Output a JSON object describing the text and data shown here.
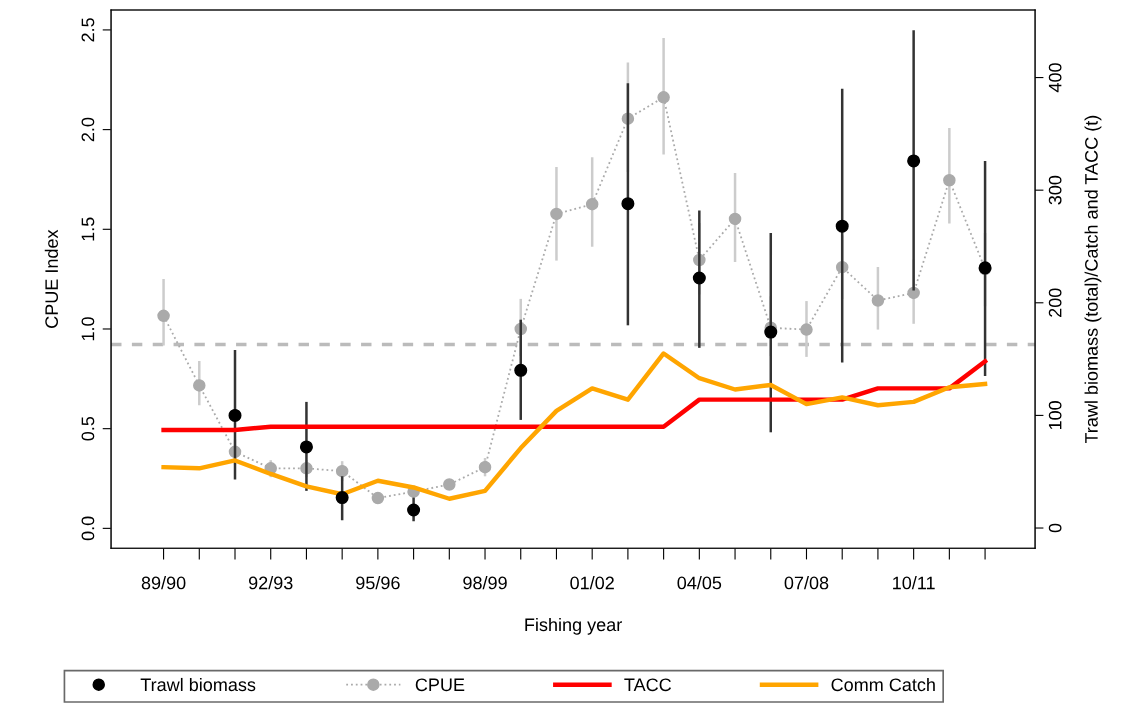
{
  "chart_data": {
    "type": "line",
    "xlabel": "Fishing year",
    "ylabel": "CPUE Index",
    "y2label": "Trawl biomass (total)/Catch and TACC (t)",
    "categories": [
      "89/90",
      null,
      null,
      "92/93",
      null,
      null,
      "95/96",
      null,
      null,
      "98/99",
      null,
      null,
      "01/02",
      null,
      null,
      "04/05",
      null,
      null,
      "07/08",
      null,
      null,
      "10/11",
      null,
      null
    ],
    "ylim": [
      -0.1,
      2.6
    ],
    "yticks": [
      {
        "value": 0,
        "label": "0.0"
      },
      {
        "value": 0.5,
        "label": "0.5"
      },
      {
        "value": 1,
        "label": "1.0"
      },
      {
        "value": 1.5,
        "label": "1.5"
      },
      {
        "value": 2,
        "label": "2.0"
      },
      {
        "value": 2.5,
        "label": "2.5"
      }
    ],
    "y2lim": [
      -18,
      460
    ],
    "y2ticks": [
      0,
      100,
      200,
      300,
      400
    ],
    "series": [
      {
        "name": "Trawl biomass",
        "type": "scatter",
        "axis": "y2",
        "color": "#000000",
        "marker": "circle",
        "values": [
          null,
          null,
          100,
          null,
          72,
          27,
          null,
          16,
          null,
          null,
          140,
          null,
          null,
          288,
          null,
          222,
          null,
          174,
          null,
          268,
          null,
          326,
          null,
          231
        ],
        "errors": [
          null,
          null,
          [
            43,
            158
          ],
          null,
          [
            33,
            112
          ],
          [
            7,
            46
          ],
          null,
          [
            6,
            27
          ],
          null,
          null,
          [
            96,
            185
          ],
          null,
          null,
          [
            180,
            395
          ],
          null,
          [
            160,
            282
          ],
          null,
          [
            85,
            262
          ],
          null,
          [
            147,
            390
          ],
          null,
          [
            211,
            442
          ],
          null,
          [
            135,
            326
          ]
        ]
      },
      {
        "name": "CPUE",
        "axis": "y",
        "color": "#aaaaaa",
        "marker": "circle",
        "line_style": "dotted",
        "values": [
          1.066,
          0.717,
          0.384,
          0.301,
          0.301,
          0.287,
          0.152,
          0.184,
          0.22,
          0.307,
          1.0,
          1.577,
          1.626,
          2.055,
          2.162,
          1.346,
          1.552,
          1.006,
          0.997,
          1.31,
          1.143,
          1.181,
          1.746,
          1.301
        ],
        "errors": [
          [
            0.917,
            1.251
          ],
          [
            0.617,
            0.839
          ],
          [
            0.32,
            0.446
          ],
          [
            0.257,
            0.342
          ],
          [
            0.257,
            0.342
          ],
          [
            0.237,
            0.337
          ],
          null,
          null,
          [
            0.195,
            0.245
          ],
          [
            0.261,
            0.353
          ],
          [
            0.864,
            1.151
          ],
          [
            1.343,
            1.813
          ],
          [
            1.412,
            1.861
          ],
          [
            1.788,
            2.337
          ],
          [
            1.875,
            2.459
          ],
          [
            1.173,
            1.532
          ],
          [
            1.336,
            1.782
          ],
          [
            0.864,
            1.164
          ],
          [
            0.86,
            1.14
          ],
          0.16,
          [
            0.997,
            1.311
          ],
          [
            1.026,
            1.348
          ],
          [
            1.529,
            2.008
          ],
          [
            1.114,
            1.482
          ]
        ]
      },
      {
        "name": "TACC",
        "axis": "y2",
        "color": "#ff0000",
        "line_style": "solid",
        "values": [
          87,
          87,
          87,
          90,
          90,
          90,
          90,
          90,
          90,
          90,
          90,
          90,
          90,
          90,
          90,
          114,
          114,
          114,
          114,
          114,
          124,
          124,
          124,
          148
        ]
      },
      {
        "name": "Comm Catch",
        "axis": "y2",
        "color": "#ffa500",
        "line_style": "solid",
        "values": [
          54,
          53,
          60,
          48,
          37,
          30,
          42,
          36,
          26,
          33,
          71,
          104,
          124,
          114,
          155,
          133,
          123,
          127,
          110,
          116,
          109,
          112,
          125,
          128
        ]
      }
    ],
    "ref_lines": [
      {
        "axis": "y",
        "value": 0.922,
        "color": "#bbbbbb",
        "line_style": "dashed"
      }
    ],
    "legend": "bottom",
    "grid": false
  }
}
